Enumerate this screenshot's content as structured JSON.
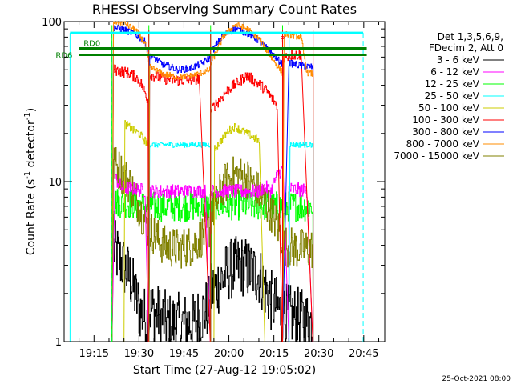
{
  "chart_data": {
    "type": "line",
    "title": "RHESSI Observing Summary Count Rates",
    "xlabel": "Start Time (27-Aug-12 19:05:02)",
    "ylabel_main": "Count Rate (s",
    "ylabel_sup1": "-1",
    "ylabel_mid": " detector",
    "ylabel_sup2": "-1",
    "ylabel_end": ")",
    "y_scale": "log",
    "ylim": [
      1,
      100
    ],
    "y_ticks": [
      "1",
      "10",
      "100"
    ],
    "x_ticks": [
      "19:15",
      "19:30",
      "19:45",
      "20:00",
      "20:15",
      "20:30",
      "20:45"
    ],
    "x_tick_minutes": [
      15,
      30,
      45,
      60,
      75,
      90,
      105
    ],
    "xlim_minutes": [
      5.03,
      112
    ],
    "legend_position": "right",
    "legend_header": [
      "Det 1,3,5,6,9,",
      "FDecim 2, Att 0"
    ],
    "series": [
      {
        "name": "3 - 6 keV",
        "color": "#000000",
        "values_text": "~1-3"
      },
      {
        "name": "6 - 12 keV",
        "color": "#ff00ff",
        "values_text": "~8-12"
      },
      {
        "name": "12 - 25 keV",
        "color": "#00ff00",
        "values_text": "~4-8"
      },
      {
        "name": "25 - 50 keV",
        "color": "#00ffff",
        "values_text": "~17"
      },
      {
        "name": "50 - 100 keV",
        "color": "#cccc00",
        "values_text": "~17-23"
      },
      {
        "name": "100 - 300 keV",
        "color": "#ff0000",
        "values_text": "~30-50"
      },
      {
        "name": "300 - 800 keV",
        "color": "#0000ff",
        "values_text": "~50-95"
      },
      {
        "name": "800 - 7000 keV",
        "color": "#ff8c00",
        "values_text": "~45-100"
      },
      {
        "name": "7000 - 15000 keV",
        "color": "#808000",
        "values_text": "~3-14"
      }
    ],
    "levels": {
      "magenta": [
        [
          21.0,
          0
        ],
        [
          22.0,
          10.5
        ],
        [
          24.0,
          9.2
        ],
        [
          32.0,
          8.8
        ],
        [
          33.2,
          0
        ]
      ],
      "magenta2": [
        [
          33.2,
          8.7
        ],
        [
          52.0,
          8.7
        ],
        [
          53.8,
          0
        ]
      ],
      "magenta3": [
        [
          53.8,
          8.7
        ],
        [
          70.0,
          8.7
        ],
        [
          72.0,
          9.3
        ],
        [
          74.0,
          8.7
        ],
        [
          76.0,
          11.0
        ],
        [
          78.0,
          12.0
        ],
        [
          80.0,
          0
        ]
      ],
      "magenta4": [
        [
          80.0,
          9.0
        ],
        [
          83.0,
          8.9
        ],
        [
          86.0,
          8.8
        ],
        [
          88.0,
          0
        ]
      ],
      "red1": [
        [
          21.0,
          0
        ],
        [
          21.5,
          50
        ],
        [
          26.0,
          48
        ],
        [
          29.0,
          45
        ],
        [
          31.0,
          40
        ],
        [
          33.0,
          32
        ],
        [
          33.2,
          0
        ]
      ],
      "red2": [
        [
          33.2,
          0
        ],
        [
          33.5,
          47
        ],
        [
          38.0,
          44
        ],
        [
          42.0,
          43
        ],
        [
          46.0,
          43
        ],
        [
          50.0,
          44
        ],
        [
          53.8,
          0
        ]
      ],
      "red3": [
        [
          53.8,
          0
        ],
        [
          54.0,
          28
        ],
        [
          60.0,
          38
        ],
        [
          66.0,
          46
        ],
        [
          72.0,
          38
        ],
        [
          76.0,
          30
        ],
        [
          77.8,
          0
        ]
      ],
      "red4": [
        [
          77.8,
          0
        ],
        [
          78.2,
          60
        ],
        [
          81.0,
          62
        ],
        [
          84.0,
          62
        ],
        [
          88.0,
          0
        ]
      ],
      "blue1": [
        [
          21.0,
          0
        ],
        [
          21.5,
          92
        ],
        [
          24.0,
          90
        ],
        [
          28.0,
          85
        ],
        [
          32.0,
          75
        ],
        [
          33.2,
          60
        ],
        [
          33.3,
          0
        ]
      ],
      "blue2": [
        [
          33.3,
          0
        ],
        [
          33.6,
          62
        ],
        [
          38.0,
          54
        ],
        [
          43.0,
          50
        ],
        [
          47.0,
          51
        ],
        [
          51.0,
          55
        ],
        [
          53.8,
          60
        ],
        [
          53.9,
          0
        ]
      ],
      "blue3": [
        [
          53.9,
          0
        ],
        [
          54.0,
          64
        ],
        [
          58.0,
          82
        ],
        [
          62.0,
          90
        ],
        [
          66.0,
          85
        ],
        [
          70.0,
          76
        ],
        [
          74.0,
          64
        ],
        [
          77.8,
          54
        ],
        [
          77.9,
          0
        ]
      ],
      "blue4": [
        [
          77.9,
          0
        ],
        [
          80.0,
          55
        ],
        [
          84.0,
          53
        ],
        [
          88.0,
          52
        ],
        [
          88.1,
          0
        ]
      ],
      "orange1": [
        [
          21.0,
          0
        ],
        [
          21.5,
          100
        ],
        [
          25.0,
          98
        ],
        [
          29.0,
          88
        ],
        [
          32.0,
          73
        ],
        [
          33.2,
          55
        ],
        [
          33.3,
          0
        ]
      ],
      "orange2": [
        [
          33.3,
          0
        ],
        [
          33.6,
          52
        ],
        [
          38.0,
          47
        ],
        [
          43.0,
          45
        ],
        [
          48.0,
          46
        ],
        [
          53.8,
          50
        ],
        [
          53.9,
          0
        ]
      ],
      "orange3": [
        [
          53.9,
          0
        ],
        [
          54.0,
          55
        ],
        [
          58.0,
          80
        ],
        [
          62.0,
          96
        ],
        [
          66.0,
          90
        ],
        [
          70.0,
          78
        ],
        [
          74.0,
          60
        ],
        [
          77.8,
          48
        ],
        [
          77.9,
          0
        ]
      ],
      "orange4": [
        [
          77.9,
          0
        ],
        [
          78.4,
          84
        ],
        [
          81.0,
          82
        ],
        [
          84.0,
          80
        ],
        [
          86.0,
          48
        ],
        [
          88.0,
          47
        ],
        [
          88.1,
          0
        ]
      ],
      "yellow1": [
        [
          25.0,
          0
        ],
        [
          25.3,
          23
        ],
        [
          28.0,
          21
        ],
        [
          30.0,
          20
        ],
        [
          32.0,
          18
        ],
        [
          33.2,
          17
        ],
        [
          33.3,
          0
        ]
      ],
      "yellow2": [
        [
          55.0,
          0
        ],
        [
          55.2,
          16
        ],
        [
          60.0,
          21
        ],
        [
          62.0,
          22
        ],
        [
          66.0,
          20
        ],
        [
          70.0,
          18
        ],
        [
          72.0,
          0
        ]
      ],
      "cyan1": [
        [
          33.3,
          0
        ],
        [
          33.6,
          17
        ],
        [
          53.8,
          17
        ],
        [
          53.9,
          0
        ]
      ],
      "cyan2": [
        [
          80.0,
          0
        ],
        [
          80.4,
          17
        ],
        [
          88.0,
          17
        ],
        [
          88.1,
          0
        ]
      ],
      "green1": [
        [
          21.0,
          0
        ],
        [
          21.5,
          7.5
        ],
        [
          33.2,
          7.0
        ],
        [
          33.3,
          0
        ]
      ],
      "green2": [
        [
          33.3,
          0
        ],
        [
          33.6,
          7.0
        ],
        [
          53.8,
          7.0
        ],
        [
          53.9,
          0
        ]
      ],
      "green3": [
        [
          53.9,
          0
        ],
        [
          54.2,
          7.2
        ],
        [
          77.8,
          7.0
        ],
        [
          77.9,
          0
        ]
      ],
      "green4": [
        [
          77.9,
          0
        ],
        [
          78.3,
          7.0
        ],
        [
          88.0,
          7.0
        ],
        [
          88.1,
          0
        ]
      ],
      "olive1": [
        [
          21.0,
          0
        ],
        [
          21.5,
          13.0
        ],
        [
          24.0,
          11.5
        ],
        [
          27.0,
          9.5
        ],
        [
          30.0,
          7.0
        ],
        [
          33.2,
          5.0
        ],
        [
          33.3,
          0
        ]
      ],
      "olive2": [
        [
          33.3,
          0
        ],
        [
          33.6,
          5.0
        ],
        [
          38.0,
          4.0
        ],
        [
          43.0,
          3.8
        ],
        [
          48.0,
          4.0
        ],
        [
          53.8,
          5.2
        ],
        [
          53.9,
          0
        ]
      ],
      "olive3": [
        [
          53.9,
          0
        ],
        [
          54.0,
          6.0
        ],
        [
          58.0,
          9.5
        ],
        [
          62.0,
          11.0
        ],
        [
          66.0,
          10.5
        ],
        [
          70.0,
          8.5
        ],
        [
          74.0,
          6.5
        ],
        [
          77.8,
          4.5
        ],
        [
          77.9,
          0
        ]
      ],
      "olive4": [
        [
          77.9,
          0
        ],
        [
          78.3,
          4.0
        ],
        [
          83.0,
          3.8
        ],
        [
          88.0,
          3.8
        ],
        [
          88.1,
          0
        ]
      ],
      "black1": [
        [
          21.0,
          0
        ],
        [
          21.5,
          3.8
        ],
        [
          27.0,
          2.5
        ],
        [
          30.0,
          1.6
        ],
        [
          33.2,
          1.3
        ],
        [
          33.3,
          0
        ]
      ],
      "black2": [
        [
          33.3,
          0
        ],
        [
          33.6,
          1.6
        ],
        [
          40.0,
          1.3
        ],
        [
          48.0,
          1.3
        ],
        [
          53.8,
          1.7
        ],
        [
          53.9,
          0
        ]
      ],
      "black3": [
        [
          53.9,
          0
        ],
        [
          54.0,
          2.0
        ],
        [
          60.0,
          2.8
        ],
        [
          64.0,
          3.0
        ],
        [
          70.0,
          2.6
        ],
        [
          74.0,
          1.8
        ],
        [
          77.8,
          1.5
        ],
        [
          77.9,
          0
        ]
      ],
      "black4": [
        [
          77.9,
          0
        ],
        [
          78.3,
          1.5
        ],
        [
          83.0,
          1.4
        ],
        [
          88.0,
          1.3
        ],
        [
          88.1,
          0
        ]
      ]
    },
    "vlines": {
      "cyan_solid": [
        7.0,
        33.3,
        53.9,
        80.1
      ],
      "cyan_dashed": [
        20.8,
        104.8
      ],
      "green_solid": [
        21.0,
        33.3,
        53.9,
        77.9
      ],
      "red_solid": [
        33.3,
        53.9,
        77.9,
        88.1
      ]
    },
    "hbars": {
      "cyan_top": {
        "value": 85,
        "x_start": 7.0,
        "x_end": 104.8
      },
      "green_rd0": {
        "value": 68,
        "x_start": 10.0,
        "x_end": 106.0
      },
      "green_rd6": {
        "value": 62,
        "x_start": 10.0,
        "x_end": 106.0
      }
    },
    "annotations": {
      "rd0": "RD0",
      "rd6": "RD6",
      "flag_p": "P"
    },
    "footer_date": "25-Oct-2021 08:00"
  }
}
